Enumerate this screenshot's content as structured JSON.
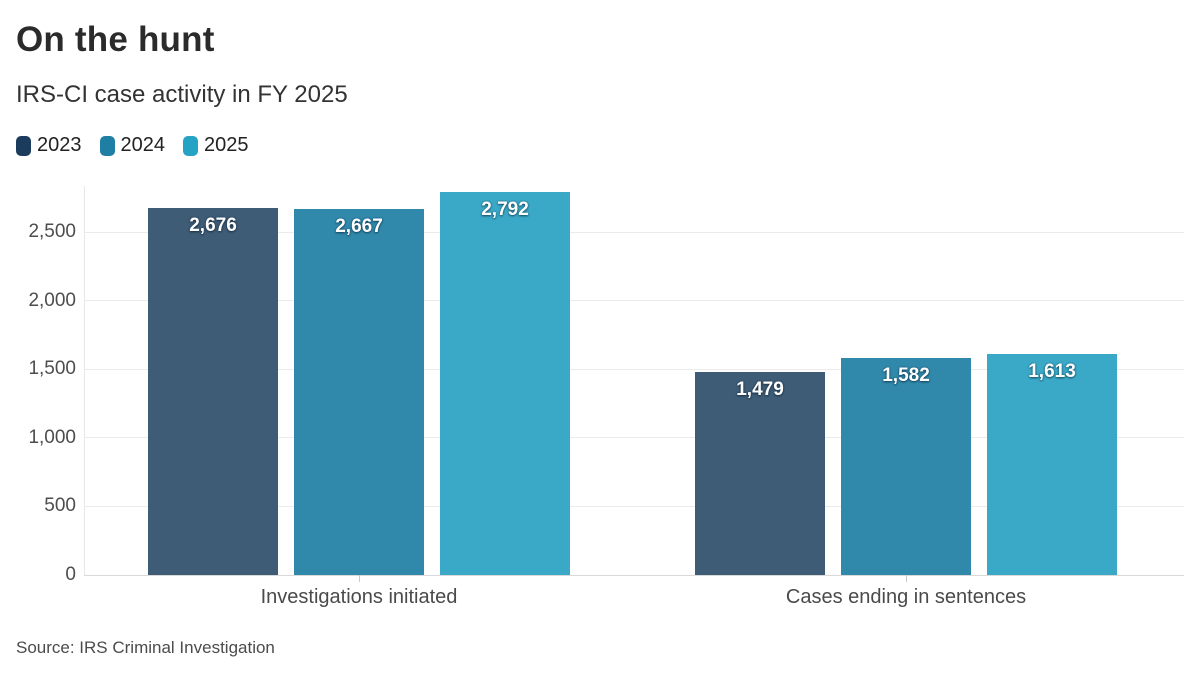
{
  "header": {
    "title": "On the hunt",
    "subtitle": "IRS-CI case activity in FY 2025"
  },
  "chart_data": {
    "type": "bar",
    "categories": [
      "Investigations initiated",
      "Cases ending in sentences"
    ],
    "series": [
      {
        "name": "2023",
        "legend_color": "#1c3c5e",
        "bar_color": "#3e5c76",
        "values": [
          2676,
          1479
        ]
      },
      {
        "name": "2024",
        "legend_color": "#1e7ea3",
        "bar_color": "#3089ab",
        "values": [
          2667,
          1582
        ]
      },
      {
        "name": "2025",
        "legend_color": "#25a3c4",
        "bar_color": "#3aa9c7",
        "values": [
          2792,
          1613
        ]
      }
    ],
    "y_ticks": [
      0,
      500,
      1000,
      1500,
      2000,
      2500
    ],
    "ylim": [
      0,
      2850
    ],
    "grid": "horizontal",
    "legend_position": "top-left",
    "value_label_color": "#ffffff"
  },
  "footer": {
    "source": "Source: IRS Criminal Investigation"
  }
}
